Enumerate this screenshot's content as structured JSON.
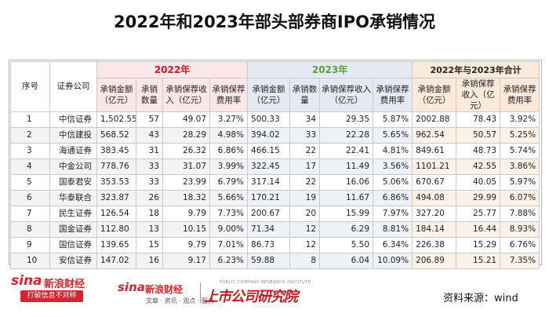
{
  "title": "2022年和2023年部头部券商IPO承销情况",
  "table": {
    "group_headers": {
      "index": "序号",
      "firm": "证券公司",
      "y2022": "2022年",
      "y2023": "2023年",
      "total": "2022年与2023年合计"
    },
    "sub_headers": {
      "y2022": [
        "承销金额（亿元）",
        "承销数量",
        "承销保荐收入（亿元）",
        "承销保荐费用率"
      ],
      "y2023": [
        "承销金额（亿元）",
        "承销数量",
        "承销保荐收入（亿元）",
        "承销保荐费用率"
      ],
      "total": [
        "承销金额（亿元）",
        "承销保荐收入（亿元）",
        "承销保荐费用率"
      ]
    },
    "rows": [
      {
        "idx": "1",
        "firm": "中信证券",
        "a22": "1,502.55",
        "n22": "57",
        "r22": "49.07",
        "f22": "3.27%",
        "a23": "500.33",
        "n23": "34",
        "r23": "29.35",
        "f23": "5.87%",
        "at": "2002.88",
        "rt": "78.43",
        "ft": "3.92%"
      },
      {
        "idx": "2",
        "firm": "中信建投",
        "a22": "568.52",
        "n22": "43",
        "r22": "28.29",
        "f22": "4.98%",
        "a23": "394.02",
        "n23": "33",
        "r23": "22.28",
        "f23": "5.65%",
        "at": "962.54",
        "rt": "50.57",
        "ft": "5.25%"
      },
      {
        "idx": "3",
        "firm": "海通证券",
        "a22": "383.45",
        "n22": "31",
        "r22": "26.32",
        "f22": "6.86%",
        "a23": "466.15",
        "n23": "22",
        "r23": "22.41",
        "f23": "4.81%",
        "at": "849.61",
        "rt": "48.73",
        "ft": "5.74%"
      },
      {
        "idx": "4",
        "firm": "中金公司",
        "a22": "778.76",
        "n22": "33",
        "r22": "31.07",
        "f22": "3.99%",
        "a23": "322.45",
        "n23": "17",
        "r23": "11.49",
        "f23": "3.56%",
        "at": "1101.21",
        "rt": "42.55",
        "ft": "3.86%"
      },
      {
        "idx": "5",
        "firm": "国泰君安",
        "a22": "353.53",
        "n22": "33",
        "r22": "23.99",
        "f22": "6.79%",
        "a23": "317.14",
        "n23": "22",
        "r23": "16.06",
        "f23": "5.06%",
        "at": "670.67",
        "rt": "40.05",
        "ft": "5.97%"
      },
      {
        "idx": "6",
        "firm": "华泰联合",
        "a22": "323.87",
        "n22": "26",
        "r22": "18.32",
        "f22": "5.66%",
        "a23": "170.21",
        "n23": "19",
        "r23": "11.67",
        "f23": "6.86%",
        "at": "494.08",
        "rt": "29.99",
        "ft": "6.07%"
      },
      {
        "idx": "7",
        "firm": "民生证券",
        "a22": "126.54",
        "n22": "18",
        "r22": "9.79",
        "f22": "7.73%",
        "a23": "200.67",
        "n23": "20",
        "r23": "15.99",
        "f23": "7.97%",
        "at": "327.20",
        "rt": "25.77",
        "ft": "7.88%"
      },
      {
        "idx": "8",
        "firm": "国金证券",
        "a22": "112.80",
        "n22": "13",
        "r22": "10.15",
        "f22": "9.00%",
        "a23": "71.34",
        "n23": "12",
        "r23": "6.29",
        "f23": "8.81%",
        "at": "184.14",
        "rt": "16.44",
        "ft": "8.93%"
      },
      {
        "idx": "9",
        "firm": "国信证券",
        "a22": "139.65",
        "n22": "15",
        "r22": "9.79",
        "f22": "7.01%",
        "a23": "86.73",
        "n23": "12",
        "r23": "5.50",
        "f23": "6.34%",
        "at": "226.38",
        "rt": "15.29",
        "ft": "6.76%"
      },
      {
        "idx": "10",
        "firm": "安信证券",
        "a22": "147.02",
        "n22": "16",
        "r22": "9.17",
        "f22": "6.23%",
        "a23": "59.88",
        "n23": "8",
        "r23": "6.04",
        "f23": "10.09%",
        "at": "206.89",
        "rt": "15.21",
        "ft": "7.35%"
      }
    ]
  },
  "footer": {
    "sina_logo_text": "sina",
    "sina_brand": "新浪财经",
    "sina_slogan": "打破信息不对称",
    "sina2_logo_text": "sina",
    "sina2_brand": "新浪财经",
    "sina2_sub": "文章 · 资讯 · 观点 · 服务",
    "institute_en": "PUBLIC COMPANY RESEARCH INSTITUTE",
    "institute": "上市公司研究院",
    "source": "资料来源：wind"
  },
  "colors": {
    "group_2022_bg": "#fbe7e7",
    "group_2023_bg": "#e3eaf4",
    "group_total_bg": "#fbe9da",
    "label_2022": "#c8191f",
    "label_2023": "#5e9e3a",
    "brand_red": "#d9232d"
  }
}
